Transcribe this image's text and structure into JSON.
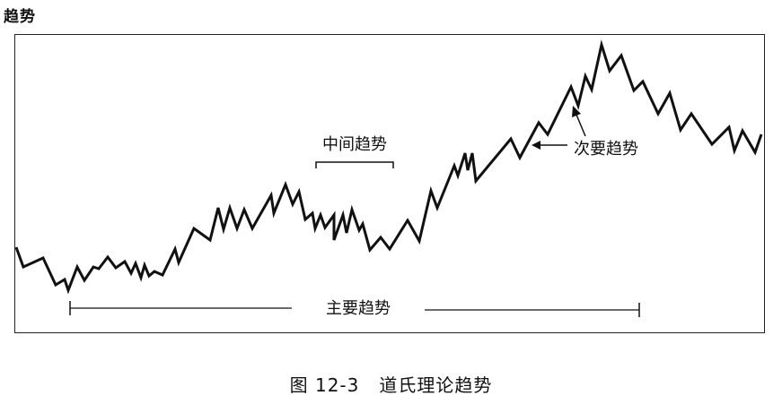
{
  "title": "趋势",
  "labels": {
    "intermediate": "中间趋势",
    "secondary": "次要趋势",
    "primary": "主要趋势"
  },
  "caption": {
    "figure_number": "图 12-3",
    "text": "道氏理论趋势"
  },
  "colors": {
    "line": "#111111",
    "frame": "#222222"
  }
}
